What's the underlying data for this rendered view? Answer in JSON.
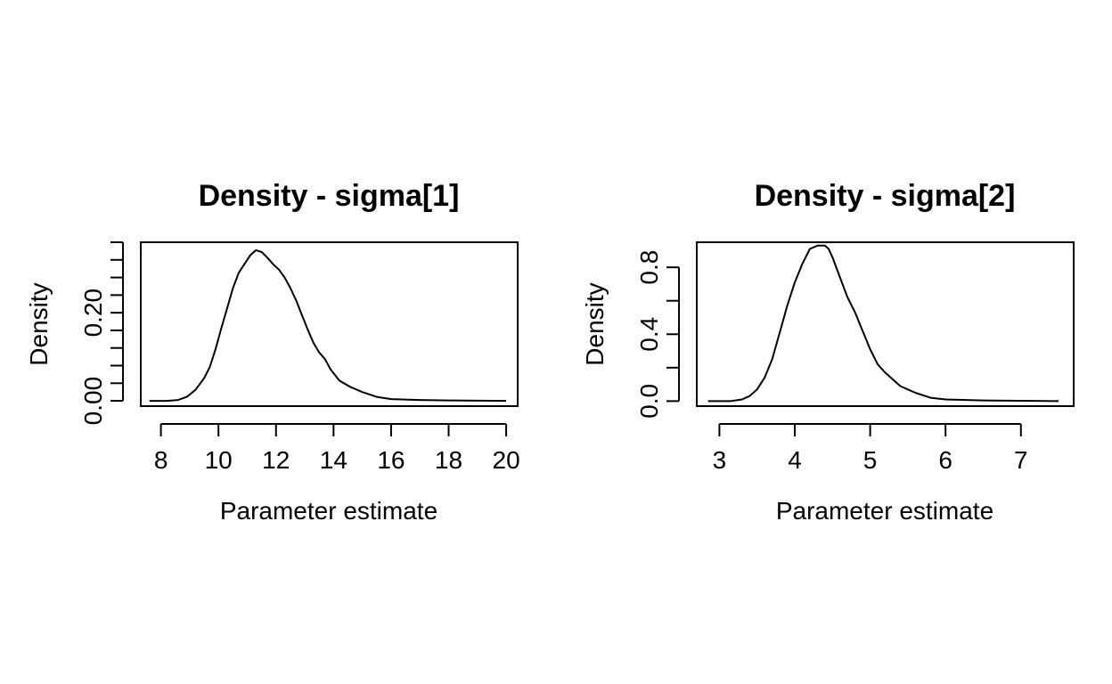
{
  "chart_data": [
    {
      "type": "line",
      "title": "Density - sigma[1]",
      "xlabel": "Parameter estimate",
      "ylabel": "Density",
      "xlim": [
        7.3,
        20.4
      ],
      "ylim": [
        -0.012,
        0.36
      ],
      "x_ticks": [
        8,
        10,
        12,
        14,
        16,
        18,
        20
      ],
      "x_tick_labels": [
        "8",
        "10",
        "12",
        "14",
        "16",
        "18",
        "20"
      ],
      "y_ticks": [
        0.0,
        0.04,
        0.08,
        0.12,
        0.16,
        0.2,
        0.24,
        0.28,
        0.32,
        0.36
      ],
      "y_tick_labels": [
        "0.00",
        "0.20"
      ],
      "y_labeled_ticks": [
        0.0,
        0.2
      ],
      "grid": false,
      "series": [
        {
          "x": [
            7.6,
            8.2,
            8.6,
            8.9,
            9.2,
            9.5,
            9.7,
            9.9,
            10.1,
            10.3,
            10.5,
            10.7,
            10.9,
            11.1,
            11.3,
            11.5,
            11.7,
            11.9,
            12.1,
            12.3,
            12.5,
            12.7,
            12.9,
            13.1,
            13.3,
            13.5,
            13.7,
            13.9,
            14.2,
            14.6,
            15.0,
            15.5,
            16.0,
            17.0,
            18.0,
            20.0
          ],
          "y": [
            0.0,
            0.0,
            0.002,
            0.009,
            0.025,
            0.051,
            0.077,
            0.118,
            0.165,
            0.21,
            0.255,
            0.29,
            0.31,
            0.33,
            0.342,
            0.338,
            0.325,
            0.31,
            0.298,
            0.28,
            0.256,
            0.228,
            0.195,
            0.162,
            0.132,
            0.11,
            0.095,
            0.071,
            0.046,
            0.031,
            0.02,
            0.009,
            0.004,
            0.002,
            0.001,
            0.0
          ]
        }
      ]
    },
    {
      "type": "line",
      "title": "Density - sigma[2]",
      "xlabel": "Parameter estimate",
      "ylabel": "Density",
      "xlim": [
        2.7,
        7.7
      ],
      "ylim": [
        -0.03,
        0.95
      ],
      "x_ticks": [
        3,
        4,
        5,
        6,
        7
      ],
      "x_tick_labels": [
        "3",
        "4",
        "5",
        "6",
        "7"
      ],
      "y_ticks": [
        0.0,
        0.2,
        0.4,
        0.6,
        0.8
      ],
      "y_tick_labels": [
        "0.0",
        "0.4",
        "0.8"
      ],
      "y_labeled_ticks": [
        0.0,
        0.4,
        0.8
      ],
      "grid": false,
      "series": [
        {
          "x": [
            2.85,
            3.15,
            3.3,
            3.4,
            3.5,
            3.6,
            3.7,
            3.8,
            3.9,
            4.0,
            4.1,
            4.2,
            4.3,
            4.4,
            4.45,
            4.5,
            4.6,
            4.7,
            4.8,
            4.9,
            5.0,
            5.1,
            5.2,
            5.3,
            5.4,
            5.6,
            5.8,
            6.0,
            6.5,
            7.0,
            7.5
          ],
          "y": [
            0.0,
            0.0,
            0.01,
            0.03,
            0.07,
            0.14,
            0.25,
            0.41,
            0.57,
            0.71,
            0.82,
            0.91,
            0.93,
            0.93,
            0.91,
            0.86,
            0.74,
            0.62,
            0.53,
            0.42,
            0.31,
            0.22,
            0.17,
            0.13,
            0.09,
            0.05,
            0.02,
            0.01,
            0.004,
            0.002,
            0.0
          ]
        }
      ]
    }
  ]
}
